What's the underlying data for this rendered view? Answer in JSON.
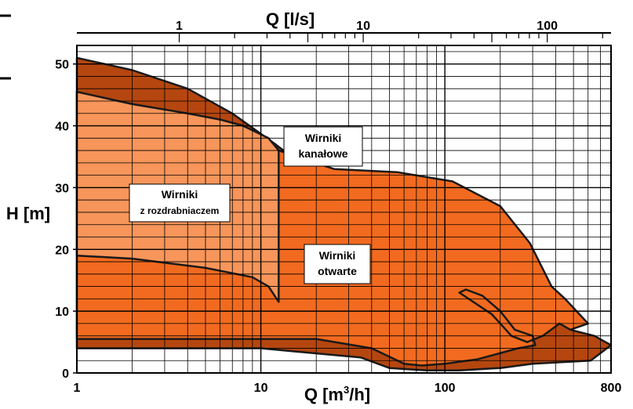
{
  "chart_data": {
    "type": "area",
    "x_axis_bottom": {
      "title_prefix": "Q [m",
      "title_sup": "3",
      "title_suffix": "/h]",
      "scale": "log",
      "range": [
        1,
        800
      ],
      "tick_labels": [
        "1",
        "10",
        "100",
        "800"
      ],
      "tick_values": [
        1,
        10,
        100,
        800
      ]
    },
    "x_axis_top": {
      "title": "Q [l/s]",
      "scale": "log",
      "tick_labels": [
        "1",
        "10",
        "100"
      ],
      "tick_values": [
        1,
        10,
        100
      ]
    },
    "y_axis": {
      "title": "H [m]",
      "scale": "linear",
      "range": [
        0,
        53
      ],
      "tick_labels": [
        "0",
        "10",
        "20",
        "30",
        "40",
        "50"
      ],
      "tick_values": [
        0,
        10,
        20,
        30,
        40,
        50
      ]
    },
    "grid": true,
    "colors": {
      "open": "#F26A1F",
      "channel": "#B5460F",
      "grinder": "#F7955A",
      "outline": "#1a1a1a",
      "grid": "#000000"
    },
    "regions": [
      {
        "label_lines": [
          "Wirniki",
          "kanałowe"
        ],
        "points": [
          [
            1,
            51
          ],
          [
            2,
            49
          ],
          [
            4,
            46
          ],
          [
            7,
            42
          ],
          [
            12,
            37
          ],
          [
            30,
            28
          ],
          [
            38,
            26
          ],
          [
            60,
            25
          ],
          [
            110,
            23
          ],
          [
            220,
            19
          ],
          [
            330,
            11
          ],
          [
            480,
            7
          ],
          [
            650,
            6
          ],
          [
            800,
            4.5
          ],
          [
            620,
            2
          ],
          [
            300,
            1.5
          ],
          [
            200,
            0.8
          ],
          [
            120,
            0.4
          ],
          [
            80,
            0.4
          ],
          [
            50,
            0.8
          ],
          [
            35,
            2.5
          ],
          [
            10,
            4
          ],
          [
            1,
            4
          ]
        ]
      },
      {
        "label_lines": [
          "Wirniki",
          "otwarte"
        ],
        "points": [
          [
            1,
            45.5
          ],
          [
            2,
            43.5
          ],
          [
            4,
            42
          ],
          [
            6,
            41
          ],
          [
            8,
            40
          ],
          [
            12,
            37
          ],
          [
            12.5,
            36
          ],
          [
            25,
            33
          ],
          [
            55,
            32.5
          ],
          [
            110,
            31
          ],
          [
            200,
            27
          ],
          [
            290,
            21
          ],
          [
            380,
            14
          ],
          [
            450,
            12
          ],
          [
            600,
            8
          ],
          [
            480,
            7
          ],
          [
            420,
            8
          ],
          [
            340,
            6
          ],
          [
            280,
            5
          ],
          [
            230,
            6
          ],
          [
            200,
            8
          ],
          [
            180,
            9.5
          ],
          [
            120,
            13
          ],
          [
            130,
            13.5
          ],
          [
            160,
            12.5
          ],
          [
            200,
            10
          ],
          [
            240,
            7
          ],
          [
            300,
            6
          ],
          [
            310,
            4.5
          ],
          [
            250,
            4
          ],
          [
            150,
            2.2
          ],
          [
            100,
            1.5
          ],
          [
            75,
            1.2
          ],
          [
            60,
            1.5
          ],
          [
            40,
            4
          ],
          [
            20,
            5.5
          ],
          [
            5,
            5.5
          ],
          [
            1,
            5.5
          ]
        ]
      },
      {
        "label_lines": [
          "Wirniki",
          "z rozdrabniaczem"
        ],
        "points": [
          [
            1,
            45.5
          ],
          [
            2,
            43.5
          ],
          [
            4,
            42
          ],
          [
            6,
            41
          ],
          [
            8,
            40
          ],
          [
            11,
            38
          ],
          [
            12.5,
            36
          ],
          [
            12.5,
            11.5
          ],
          [
            11,
            14
          ],
          [
            9,
            15.5
          ],
          [
            5,
            17
          ],
          [
            2,
            18.5
          ],
          [
            1,
            19
          ]
        ]
      }
    ]
  }
}
